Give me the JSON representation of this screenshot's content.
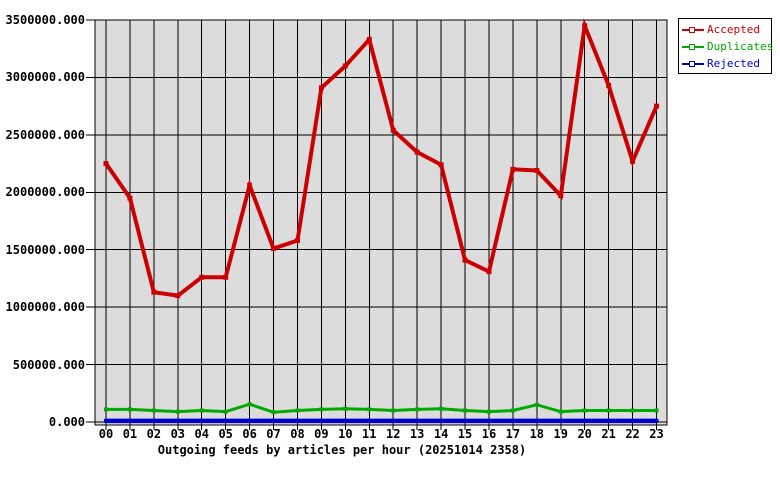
{
  "chart_data": {
    "type": "line",
    "title": "Outgoing feeds by articles per hour (20251014 2358)",
    "x": [
      "00",
      "01",
      "02",
      "03",
      "04",
      "05",
      "06",
      "07",
      "08",
      "09",
      "10",
      "11",
      "12",
      "13",
      "14",
      "15",
      "16",
      "17",
      "18",
      "19",
      "20",
      "21",
      "22",
      "23"
    ],
    "ylim": [
      0,
      3500000
    ],
    "y_ticks": [
      0,
      500000,
      1000000,
      1500000,
      2000000,
      2500000,
      3000000,
      3500000
    ],
    "y_tick_labels": [
      "0.000",
      "500000.000",
      "1000000.000",
      "1500000.000",
      "2000000.000",
      "2500000.000",
      "3000000.000",
      "3500000.000"
    ],
    "grid": true,
    "plot_bg": "#dcdcdc",
    "grid_color": "#000000",
    "legend_position": "top-right",
    "series": [
      {
        "name": "Accepted",
        "color": "#cc0000",
        "values": [
          2250000,
          1950000,
          1130000,
          1100000,
          1260000,
          1260000,
          2060000,
          1510000,
          1580000,
          2910000,
          3100000,
          3330000,
          2540000,
          2350000,
          2240000,
          1410000,
          1310000,
          2200000,
          2190000,
          1970000,
          3450000,
          2930000,
          2270000,
          2750000
        ]
      },
      {
        "name": "Duplicates",
        "color": "#00aa00",
        "values": [
          110000,
          110000,
          100000,
          90000,
          100000,
          90000,
          155000,
          85000,
          100000,
          110000,
          115000,
          110000,
          100000,
          110000,
          115000,
          100000,
          90000,
          100000,
          150000,
          90000,
          100000,
          100000,
          100000,
          100000
        ]
      },
      {
        "name": "Rejected",
        "color": "#0000cc",
        "values": [
          10000,
          10000,
          10000,
          10000,
          10000,
          10000,
          10000,
          10000,
          10000,
          10000,
          10000,
          10000,
          10000,
          10000,
          10000,
          10000,
          10000,
          10000,
          10000,
          10000,
          10000,
          10000,
          10000,
          10000
        ]
      }
    ]
  },
  "legend": {
    "items": [
      {
        "label": "Accepted",
        "color": "#cc0000"
      },
      {
        "label": "Duplicates",
        "color": "#00aa00"
      },
      {
        "label": "Rejected",
        "color": "#0000cc"
      }
    ]
  }
}
